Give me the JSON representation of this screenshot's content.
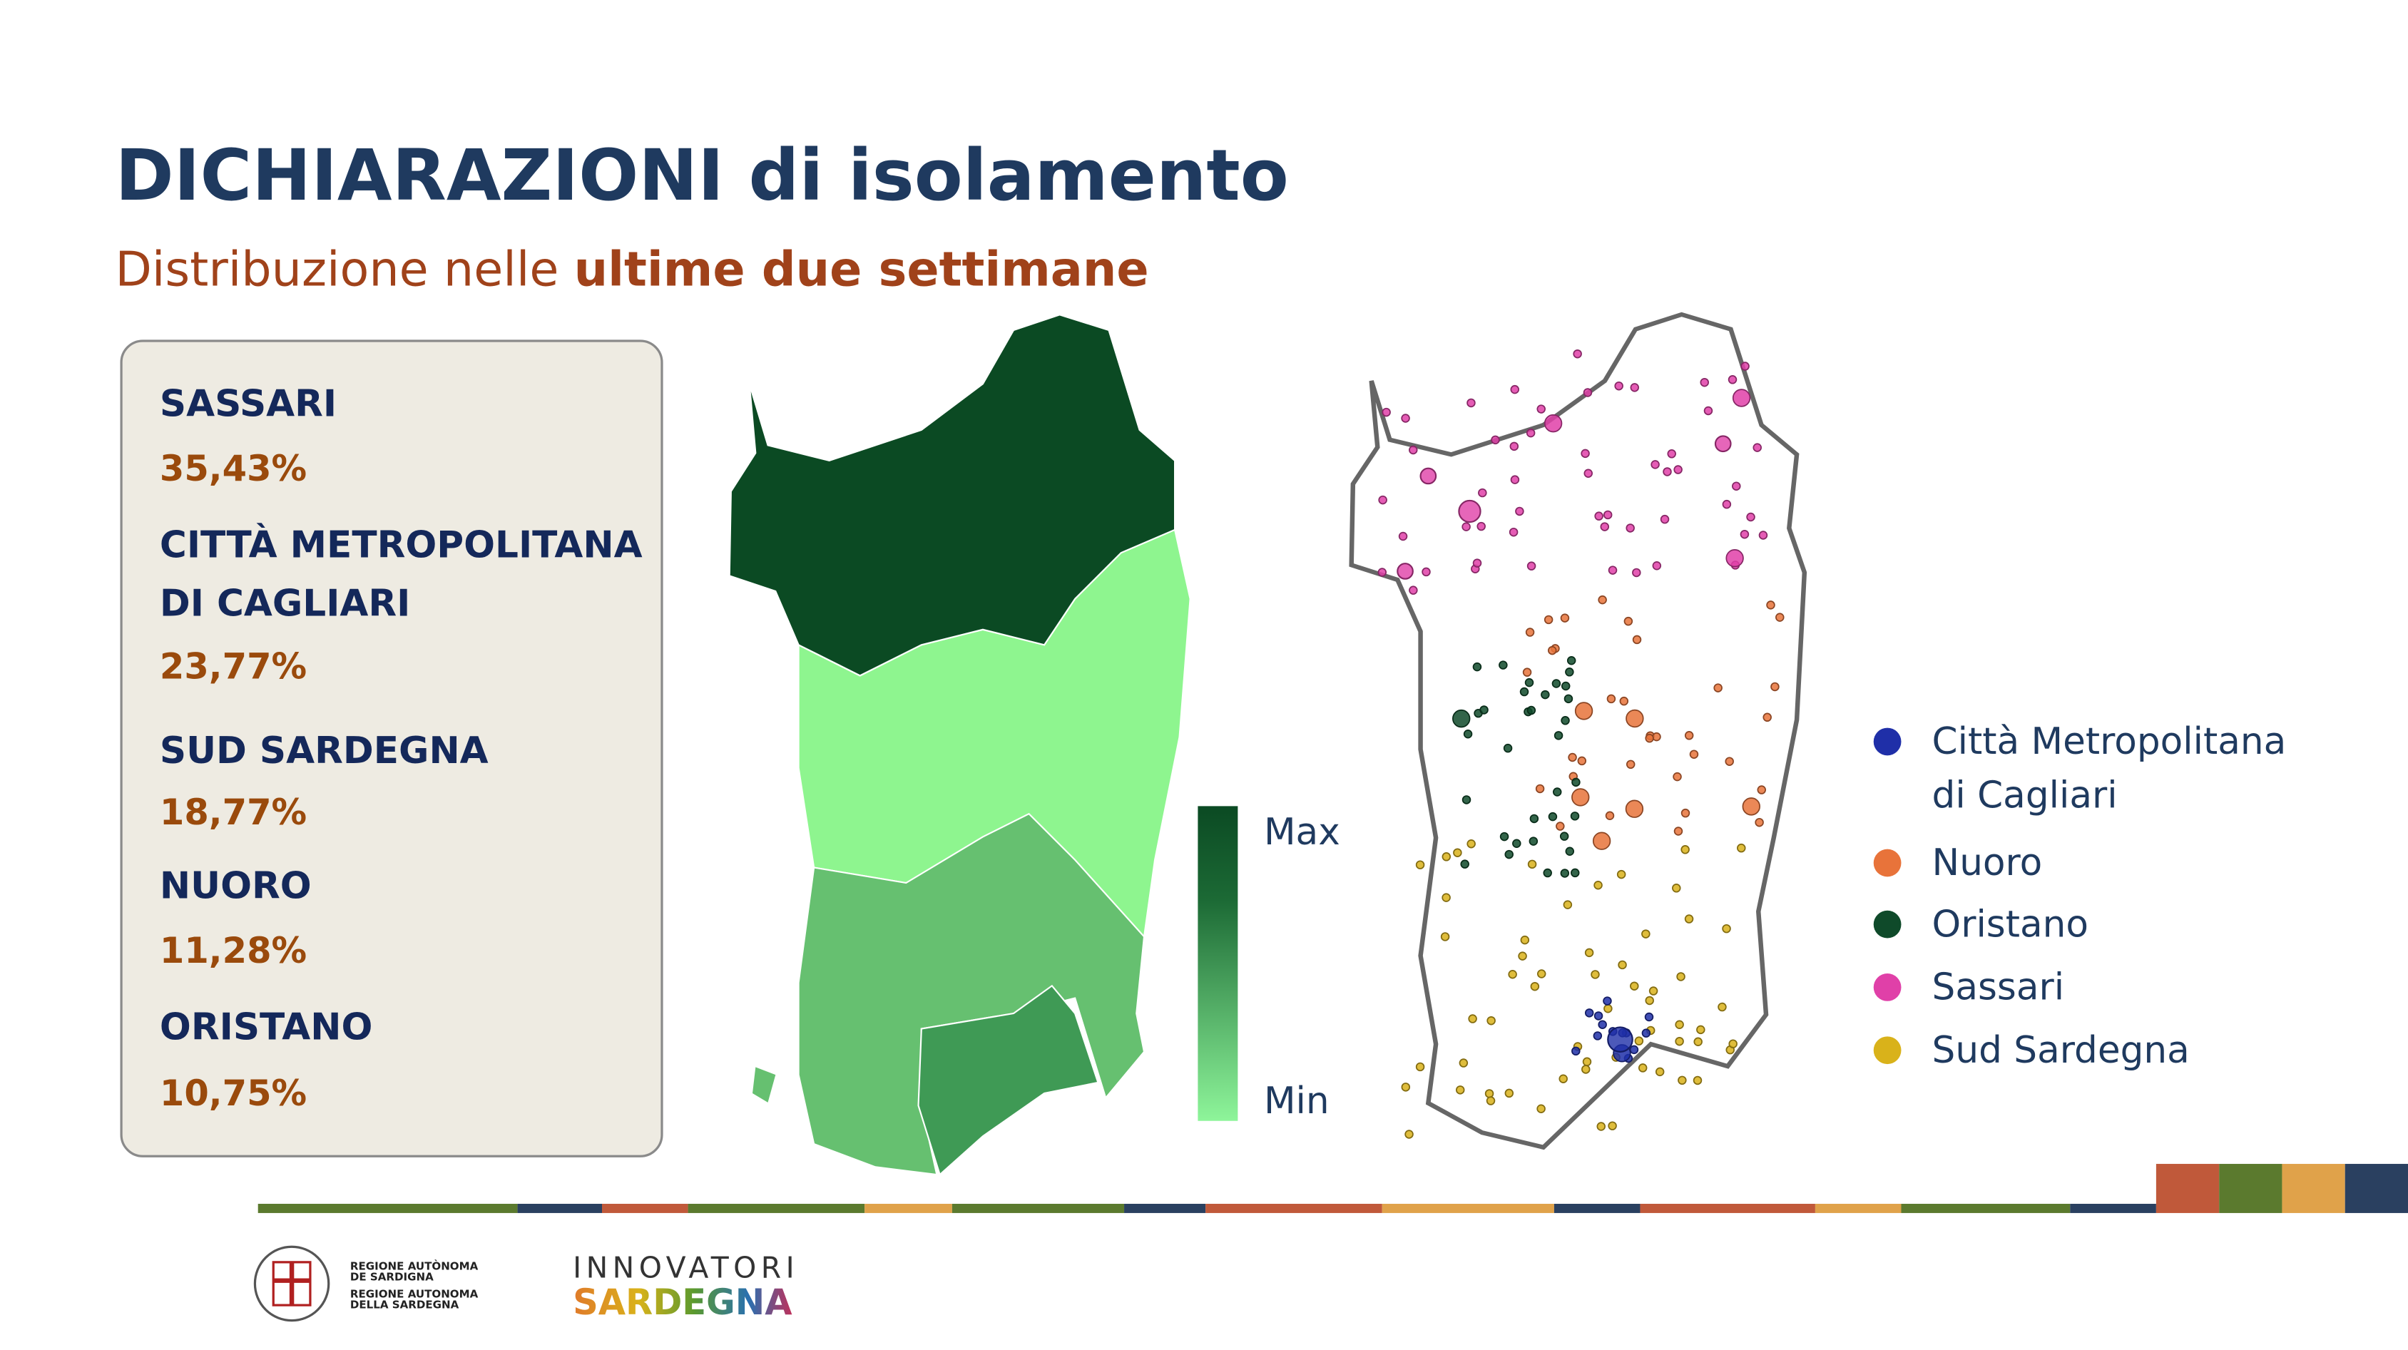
{
  "header": {
    "title": "DICHIARAZIONI di isolamento",
    "subtitle": [
      "Distribuzione nelle ",
      "ultime due settimane"
    ]
  },
  "summary": {
    "items": [
      {
        "name": [
          "SASSARI"
        ],
        "share": "35,43%"
      },
      {
        "name": [
          "CITTÀ METROPOLITANA",
          "DI CAGLIARI"
        ],
        "share": "23,77%"
      },
      {
        "name": [
          "SUD SARDEGNA"
        ],
        "share": "18,77%"
      },
      {
        "name": [
          "NUORO"
        ],
        "share": "11,28%"
      },
      {
        "name": [
          "ORISTANO"
        ],
        "share": "10,75%"
      }
    ]
  },
  "choropleth": {
    "scale": {
      "max": "Max",
      "min": "Min"
    }
  },
  "dot_map": {
    "legend": [
      {
        "label": [
          "Città Metropolitana",
          "di Cagliari"
        ],
        "color": "#1f2fa8"
      },
      {
        "label": [
          "Nuoro"
        ],
        "color": "#e8733a"
      },
      {
        "label": [
          "Oristano"
        ],
        "color": "#0f4a2a"
      },
      {
        "label": [
          "Sassari"
        ],
        "color": "#e040a8"
      },
      {
        "label": [
          "Sud Sardegna"
        ],
        "color": "#d9b21a"
      }
    ]
  },
  "footer": {
    "region": [
      "REGIONE AUTÒNOMA",
      "DE SARDIGNA",
      "REGIONE AUTONOMA",
      "DELLA SARDEGNA"
    ],
    "brand": [
      "INNOVATORI",
      "SARDEGNA"
    ]
  }
}
